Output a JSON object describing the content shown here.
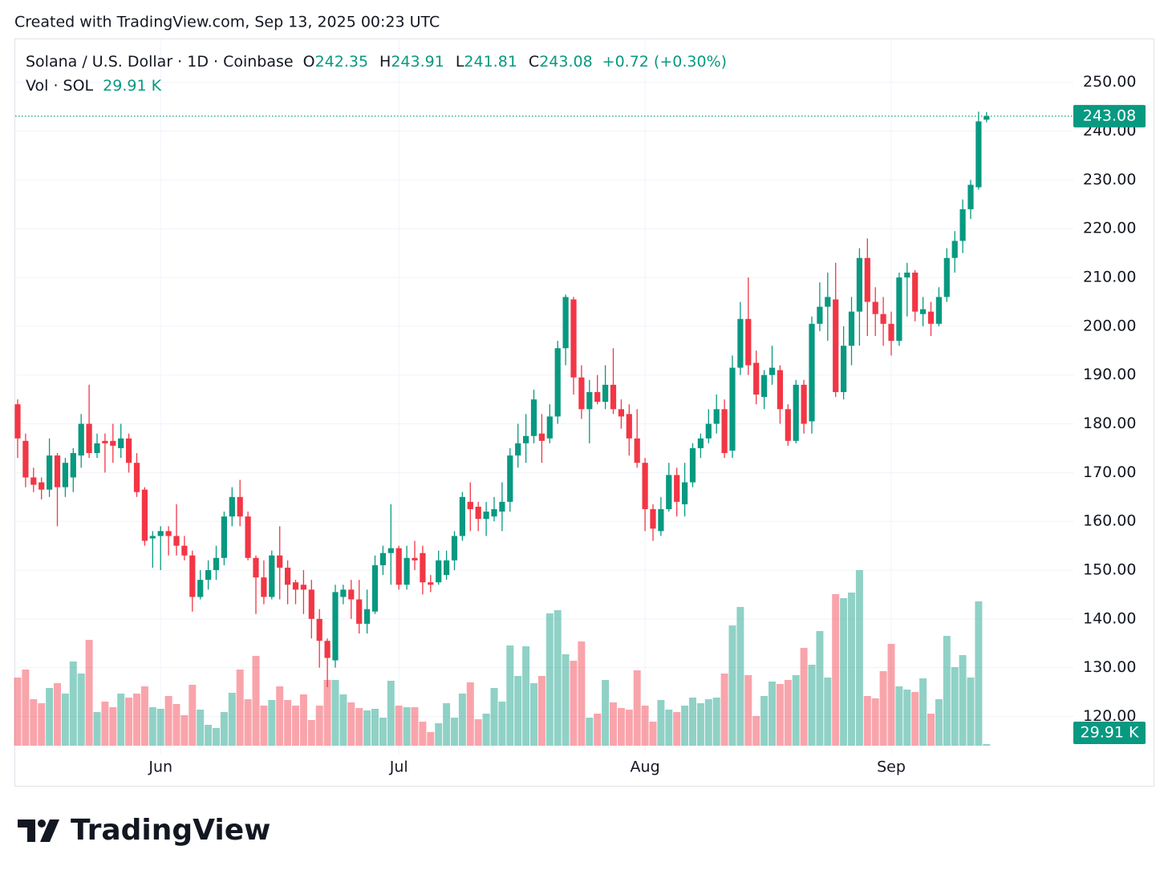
{
  "header": {
    "created": "Created with TradingView.com, Sep 13, 2025 00:23 UTC"
  },
  "footer": {
    "logo": "TradingView"
  },
  "chart_data": {
    "type": "candlestick",
    "symbol": "Solana / U.S. Dollar · 1D · Coinbase",
    "legend": [
      {
        "key": "O",
        "value": "242.35"
      },
      {
        "key": "H",
        "value": "243.91"
      },
      {
        "key": "L",
        "value": "241.81"
      },
      {
        "key": "C",
        "value": "243.08"
      }
    ],
    "change": "+0.72 (+0.30%)",
    "volume_name": "Vol · SOL",
    "volume_label": "29.91 K",
    "last_price_label": "243.08",
    "up_color": "#089981",
    "down_color": "#f23645",
    "grid": true,
    "categories": [
      null,
      null,
      null,
      null,
      null,
      null,
      null,
      null,
      null,
      null,
      null,
      null,
      null,
      null,
      null,
      null,
      null,
      null,
      "Jun",
      null,
      null,
      null,
      null,
      null,
      null,
      null,
      null,
      null,
      null,
      null,
      null,
      null,
      null,
      null,
      null,
      null,
      null,
      null,
      null,
      null,
      null,
      null,
      null,
      null,
      null,
      null,
      null,
      null,
      "Jul",
      null,
      null,
      null,
      null,
      null,
      null,
      null,
      null,
      null,
      null,
      null,
      null,
      null,
      null,
      null,
      null,
      null,
      null,
      null,
      null,
      null,
      null,
      null,
      null,
      null,
      null,
      null,
      null,
      null,
      null,
      "Aug",
      null,
      null,
      null,
      null,
      null,
      null,
      null,
      null,
      null,
      null,
      null,
      null,
      null,
      null,
      null,
      null,
      null,
      null,
      null,
      null,
      null,
      null,
      null,
      null,
      null,
      null,
      null,
      null,
      null,
      null,
      "Sep",
      null,
      null,
      null,
      null,
      null,
      null,
      null,
      null,
      null,
      null,
      null,
      null
    ],
    "open": [
      184,
      176.5,
      169,
      168,
      166.5,
      173.5,
      167,
      169,
      173.5,
      180,
      174,
      176.5,
      176.5,
      175,
      177,
      172,
      166.5,
      156.5,
      157,
      158,
      157,
      155,
      153,
      144.5,
      148,
      150,
      152.5,
      161,
      165,
      161,
      152.5,
      148.5,
      144.5,
      153,
      150.5,
      147.5,
      147,
      146,
      140,
      135.5,
      131.5,
      144.5,
      146,
      144,
      139,
      141.5,
      151,
      153.5,
      154.5,
      147,
      152.5,
      153.5,
      147.5,
      147.5,
      149,
      152,
      157,
      164,
      163,
      160.5,
      161,
      162,
      164,
      173.5,
      176,
      177.5,
      178,
      177,
      181.5,
      195.5,
      205.5,
      189.5,
      183,
      186.5,
      184.5,
      188,
      183,
      182,
      177,
      172,
      162.5,
      158,
      162.5,
      169.5,
      163.5,
      168,
      175,
      177,
      180,
      183,
      174.5,
      191.5,
      201.5,
      192.5,
      185.5,
      190,
      191,
      183,
      176.5,
      188,
      180.5,
      200.5,
      204,
      205.5,
      186.5,
      196,
      203,
      214,
      205,
      202.5,
      200.5,
      197,
      210,
      211,
      202.5,
      203,
      200.5,
      206,
      214,
      217.5,
      224,
      228.5,
      242.35
    ],
    "high": [
      185,
      178,
      171,
      169,
      177,
      174,
      173,
      175,
      182,
      188,
      178,
      178,
      180,
      180,
      178,
      174,
      167,
      158,
      159,
      159,
      163.5,
      157,
      154,
      150,
      152,
      155,
      162,
      167,
      168.5,
      162,
      153,
      152,
      154,
      159,
      152,
      148,
      150,
      148,
      142,
      136,
      147,
      147,
      148,
      148,
      146,
      153,
      155,
      163.5,
      155,
      155,
      156,
      155,
      149,
      154,
      154,
      158,
      166,
      168,
      164,
      164,
      165,
      168,
      175,
      180,
      182,
      187,
      182,
      184,
      197,
      206.5,
      206,
      192,
      189,
      190,
      192,
      195.5,
      185,
      184,
      183,
      173,
      163.5,
      165,
      172,
      171,
      172,
      176,
      178,
      183,
      186,
      185,
      194,
      205,
      210,
      195,
      191,
      196,
      192,
      184,
      189,
      189,
      202,
      209,
      211,
      213,
      200,
      206,
      216,
      218,
      208,
      206,
      203,
      211,
      213,
      211.5,
      206,
      205,
      208,
      216,
      219.5,
      226,
      230,
      244,
      243.91
    ],
    "low": [
      173,
      167,
      166,
      164.5,
      165,
      159,
      165,
      166,
      171,
      173,
      173,
      170,
      172,
      173,
      170,
      165,
      155,
      150.5,
      150,
      153,
      153,
      152,
      141.5,
      144,
      146,
      148,
      151,
      159,
      159,
      152,
      141,
      143,
      144,
      144,
      143,
      143,
      141,
      136,
      130,
      126,
      130,
      143,
      140,
      137,
      137,
      141,
      149,
      147,
      146,
      146,
      150,
      145,
      145.5,
      147,
      148,
      150,
      156,
      158,
      158,
      157,
      160,
      158,
      162,
      171,
      172,
      176,
      172,
      176,
      180,
      192,
      186,
      181,
      176,
      184,
      183,
      182,
      179,
      173.5,
      171,
      158,
      156,
      157,
      162,
      161,
      161,
      167,
      173,
      176,
      178,
      173,
      173,
      190,
      190,
      184,
      183,
      188,
      180,
      175.5,
      176,
      178,
      178,
      199,
      197,
      185.5,
      185,
      192,
      196,
      198,
      198,
      196,
      194,
      196,
      202,
      201,
      200,
      198,
      200,
      205,
      211,
      215,
      222,
      228,
      241.81
    ],
    "close": [
      177,
      169,
      167.5,
      166.5,
      173.5,
      167,
      172,
      174,
      180,
      174,
      176,
      176,
      175.5,
      177,
      172,
      166,
      156,
      157,
      158,
      157,
      155,
      153,
      144.5,
      148,
      150,
      152.5,
      161,
      165,
      161,
      152.5,
      148.5,
      144.5,
      153,
      150.5,
      147,
      146,
      146,
      140,
      135.5,
      132,
      145.5,
      146,
      144,
      139,
      142,
      151,
      153.5,
      154.5,
      147,
      152.5,
      152,
      147.5,
      147,
      152,
      152,
      157,
      165,
      162.5,
      160.5,
      162,
      162.5,
      164,
      173.5,
      176,
      177.5,
      185,
      176.5,
      181.5,
      195.5,
      206,
      189.5,
      183,
      186.5,
      184.5,
      188,
      183,
      181.5,
      177,
      172,
      162.5,
      158.5,
      162.5,
      169.5,
      164,
      168,
      175,
      177,
      180,
      183,
      174,
      191.5,
      201.5,
      192,
      186,
      190,
      191.5,
      183,
      176.5,
      188,
      180,
      200.5,
      204,
      206,
      186.5,
      196,
      203,
      214,
      205,
      202.5,
      200.5,
      197,
      210,
      211,
      203,
      203.5,
      200.5,
      206,
      214,
      217.5,
      224,
      229,
      242,
      243.08
    ],
    "volume": [
      1275,
      1425,
      870,
      795,
      1080,
      1170,
      975,
      1575,
      1350,
      1980,
      630,
      825,
      720,
      975,
      900,
      975,
      1110,
      720,
      690,
      930,
      780,
      570,
      1140,
      675,
      390,
      330,
      630,
      990,
      1425,
      870,
      1680,
      750,
      855,
      1110,
      855,
      750,
      960,
      480,
      750,
      1230,
      1230,
      960,
      810,
      705,
      660,
      690,
      525,
      1215,
      750,
      720,
      720,
      450,
      255,
      420,
      795,
      525,
      975,
      1185,
      495,
      600,
      1080,
      825,
      1875,
      1305,
      1860,
      1170,
      1305,
      2475,
      2535,
      1710,
      1590,
      1950,
      525,
      600,
      1230,
      810,
      705,
      675,
      1410,
      750,
      450,
      855,
      675,
      630,
      750,
      900,
      795,
      870,
      900,
      1350,
      2250,
      2595,
      1320,
      555,
      930,
      1200,
      1155,
      1230,
      1320,
      1830,
      1515,
      2145,
      1275,
      2835,
      2760,
      2865,
      3285,
      930,
      885,
      1395,
      1905,
      1110,
      1050,
      1005,
      1260,
      600,
      870,
      2055,
      1470,
      1695,
      1275,
      2700,
      29.91
    ],
    "ylim": [
      114,
      259
    ],
    "yticks": [
      {
        "value": 120,
        "label": "120.00"
      },
      {
        "value": 130,
        "label": "130.00"
      },
      {
        "value": 140,
        "label": "140.00"
      },
      {
        "value": 150,
        "label": "150.00"
      },
      {
        "value": 160,
        "label": "160.00"
      },
      {
        "value": 170,
        "label": "170.00"
      },
      {
        "value": 180,
        "label": "180.00"
      },
      {
        "value": 190,
        "label": "190.00"
      },
      {
        "value": 200,
        "label": "200.00"
      },
      {
        "value": 210,
        "label": "210.00"
      },
      {
        "value": 220,
        "label": "220.00"
      },
      {
        "value": 230,
        "label": "230.00"
      },
      {
        "value": 240,
        "label": "240.00"
      },
      {
        "value": 250,
        "label": "250.00"
      }
    ]
  }
}
